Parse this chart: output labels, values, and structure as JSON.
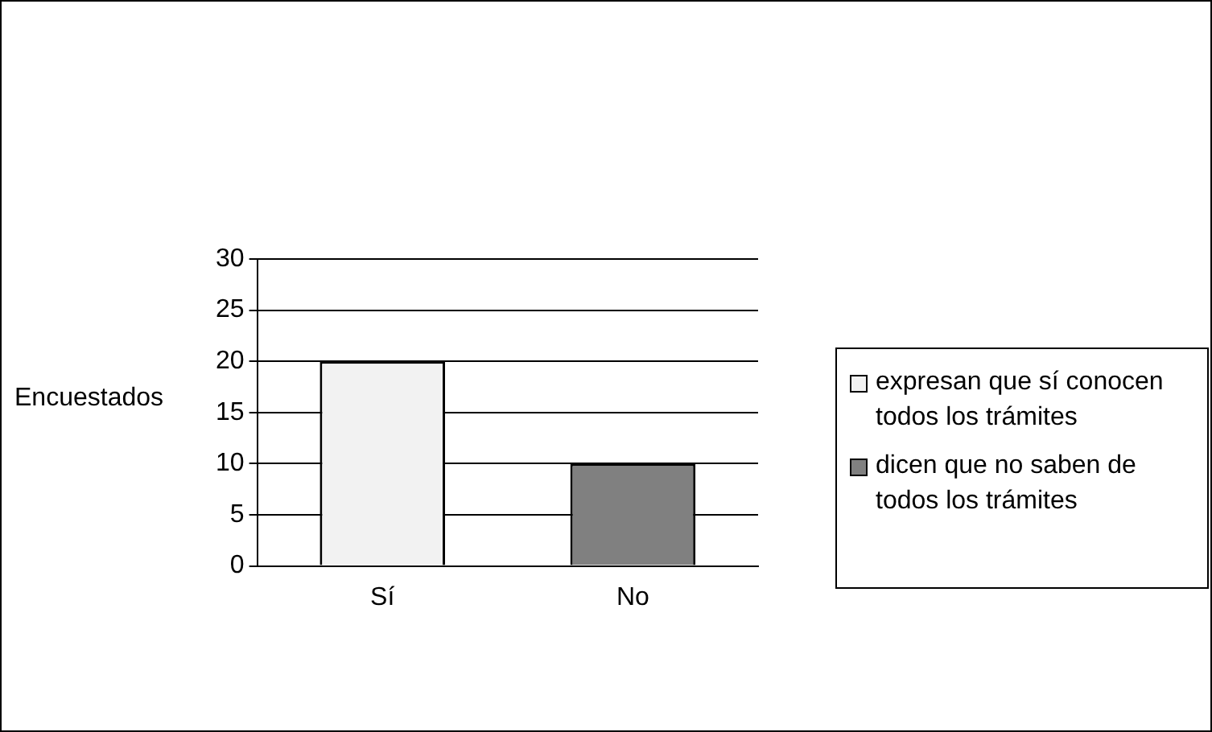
{
  "chart_data": {
    "type": "bar",
    "ylabel": "Encuestados",
    "categories": [
      "Sí",
      "No"
    ],
    "series": [
      {
        "name": "expresan que sí conocen todos los trámites",
        "color": "#f2f2f2",
        "values": [
          20,
          null
        ]
      },
      {
        "name": "dicen que no saben de todos los trámites",
        "color": "#808080",
        "values": [
          null,
          10
        ]
      }
    ],
    "ylim": [
      0,
      30
    ],
    "yticks": [
      0,
      5,
      10,
      15,
      20,
      25,
      30
    ],
    "grid": "y",
    "legend": "right"
  }
}
